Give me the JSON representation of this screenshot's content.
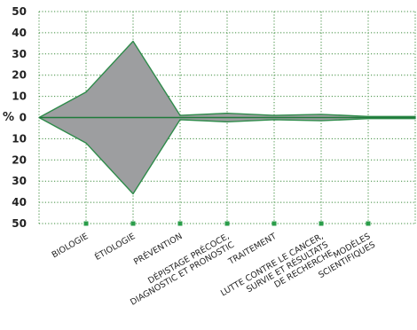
{
  "chart_data": {
    "type": "area",
    "variant": "mirrored-area",
    "ylabel": "%",
    "y_ticks": [
      "50",
      "40",
      "30",
      "20",
      "10",
      "0",
      "10",
      "20",
      "30",
      "40",
      "50"
    ],
    "ylim": [
      -50,
      50
    ],
    "grid": true,
    "categories": [
      [
        "BIOLOGIE"
      ],
      [
        "ÉTIOLOGIE"
      ],
      [
        "PRÉVENTION"
      ],
      [
        "DÉPISTAGE PRÉCOCE,",
        "DIAGNOSTIC ET PRONOSTIC"
      ],
      [
        "TRAITEMENT"
      ],
      [
        "LUTTE CONTRE LE CANCER,",
        "SURVIE ET RÉSULTATS",
        "DE RECHERCHE"
      ],
      [
        "MODÈLES",
        "SCIENTIFIQUES"
      ]
    ],
    "x": [
      0,
      1,
      2,
      3,
      4,
      5,
      6,
      7,
      8
    ],
    "values": [
      0,
      12,
      36,
      1,
      2,
      1,
      1.5,
      0.5,
      0.5
    ],
    "colors": {
      "fill": "#9d9ea0",
      "outline": "#2e8b4a",
      "grid": "#3c8c3c",
      "baseline": "#1f7a3a",
      "markers": "#2a9d4a"
    }
  }
}
